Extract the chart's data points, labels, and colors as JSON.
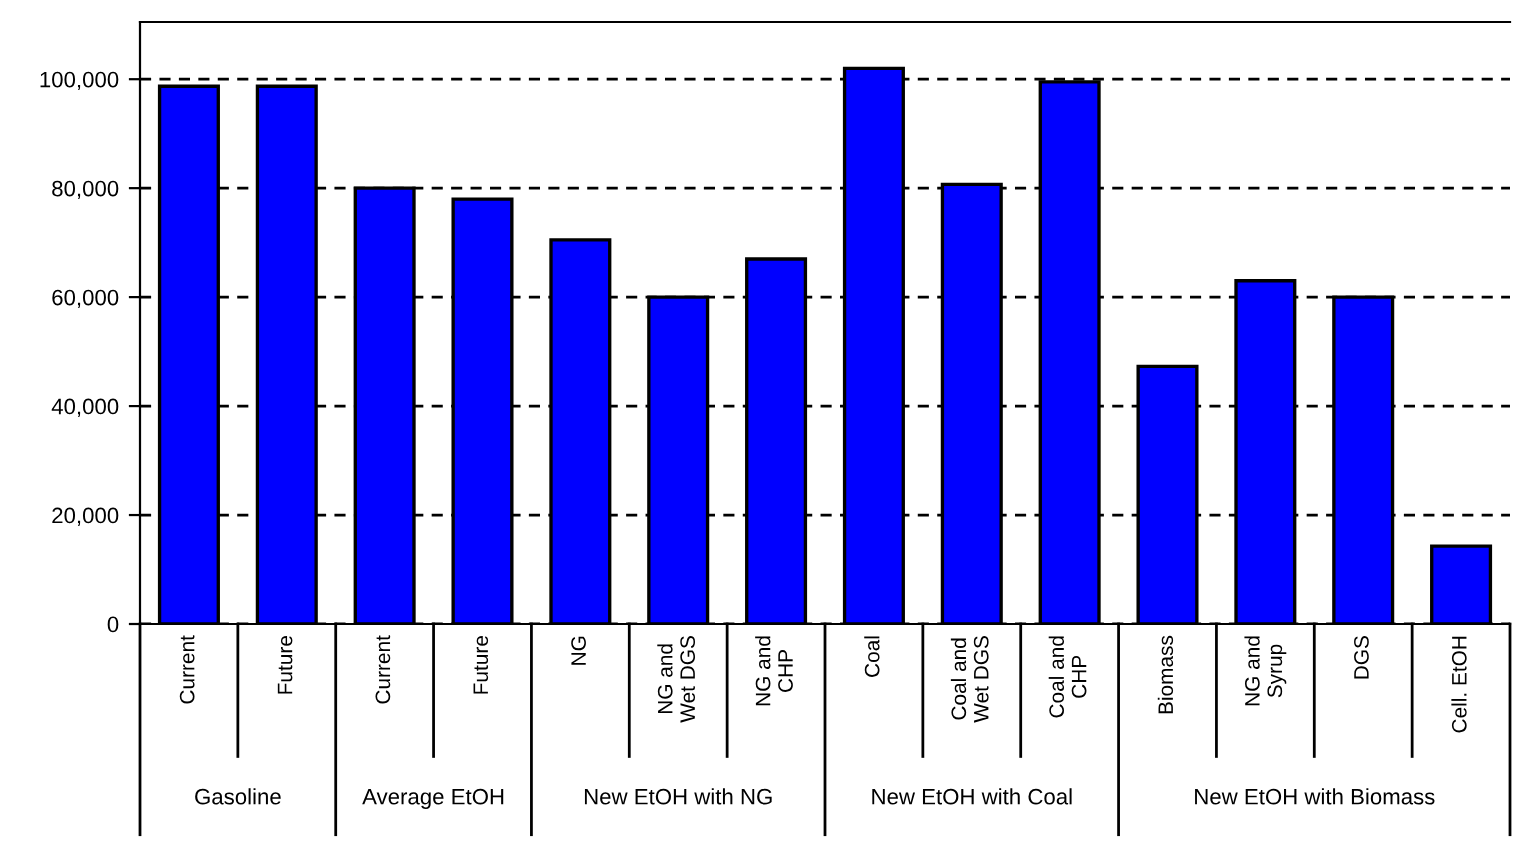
{
  "chart_data": {
    "type": "bar",
    "categories": [
      "Current",
      "Future",
      "Current",
      "Future",
      "NG",
      "NG and\nWet DGS",
      "NG and\nCHP",
      "Coal",
      "Coal and\nWet DGS",
      "Coal and\nCHP",
      "Biomass",
      "NG and\nSyrup",
      "DGS",
      "Cell. EtOH"
    ],
    "values": [
      98700,
      98700,
      80000,
      78000,
      70500,
      60000,
      67000,
      102000,
      80700,
      99500,
      47300,
      63000,
      60000,
      14300
    ],
    "color": "#0000ff",
    "ylim": [
      0,
      110500
    ],
    "yticks": [
      {
        "value": 0,
        "label": "0"
      },
      {
        "value": 20000,
        "label": "20,000"
      },
      {
        "value": 40000,
        "label": "40,000"
      },
      {
        "value": 60000,
        "label": "60,000"
      },
      {
        "value": 80000,
        "label": "80,000"
      },
      {
        "value": 100000,
        "label": "100,000"
      }
    ],
    "grid": "y",
    "annotations": [
      "Gasoline",
      "Average EtOH",
      "New EtOH with NG",
      "New EtOH with Coal",
      "New EtOH with Biomass"
    ]
  }
}
